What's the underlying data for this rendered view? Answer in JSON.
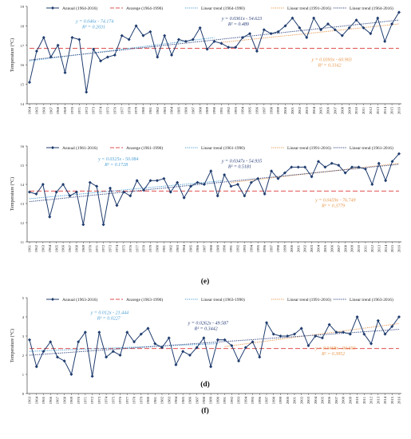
{
  "chart_data": [
    {
      "panel": "(d)",
      "type": "line",
      "ylabel": "Temperature (°C)",
      "ylim": [
        14,
        19
      ],
      "yticks": [
        14,
        15,
        16,
        17,
        18,
        19
      ],
      "x": [
        1964,
        1965,
        1966,
        1967,
        1968,
        1969,
        1970,
        1971,
        1972,
        1973,
        1974,
        1975,
        1976,
        1977,
        1978,
        1979,
        1980,
        1981,
        1982,
        1983,
        1984,
        1985,
        1986,
        1987,
        1988,
        1989,
        1990,
        1991,
        1992,
        1993,
        1994,
        1995,
        1996,
        1997,
        1998,
        1999,
        2000,
        2001,
        2002,
        2003,
        2004,
        2005,
        2006,
        2007,
        2008,
        2009,
        2010,
        2011,
        2012,
        2013,
        2014,
        2015,
        2016
      ],
      "legend": [
        "Annual (1964-2016)",
        "Avarege (1964-1990)",
        "Linear trend (1964-1990)",
        "Linear trend (1991-2016)",
        "Linear trend (1964-2016)"
      ],
      "colors": {
        "annual": "#1f3c6e",
        "average": "#e05050",
        "trend1": "#4a9fd4",
        "trend2": "#e8964a",
        "trend3": "#2a3f7a"
      },
      "values": [
        15.1,
        16.7,
        17.4,
        16.4,
        17.0,
        15.6,
        17.4,
        17.3,
        14.6,
        16.8,
        16.2,
        16.4,
        16.5,
        17.5,
        17.3,
        18.0,
        17.5,
        17.7,
        16.4,
        17.5,
        16.5,
        17.3,
        17.2,
        17.3,
        17.9,
        16.8,
        17.2,
        17.1,
        16.9,
        16.9,
        17.4,
        17.6,
        16.7,
        17.8,
        17.6,
        17.7,
        18.0,
        18.4,
        17.9,
        17.4,
        18.4,
        17.8,
        18.1,
        17.8,
        17.5,
        17.9,
        18.3,
        17.9,
        17.6,
        18.4,
        17.2,
        18.1,
        18.7
      ],
      "average": 16.85,
      "trend_full": {
        "x": [
          1964,
          2016
        ],
        "y": [
          16.25,
          18.3
        ]
      },
      "trend_early": {
        "x": [
          1964,
          1990
        ],
        "y": [
          16.2,
          17.4
        ]
      },
      "trend_late": {
        "x": [
          1991,
          2016
        ],
        "y": [
          17.15,
          18.1
        ]
      },
      "equations": [
        {
          "eq": "y = 0.046x - 74.174",
          "r2": "R² = 0.2031",
          "color": "#4a9fd4"
        },
        {
          "eq": "y = 0.0361x - 54.623",
          "r2": "R² = 0.489",
          "color": "#2a3f7a"
        },
        {
          "eq": "y = 0.0393x - 60.903",
          "r2": "R² = 0.3342",
          "color": "#e8964a"
        }
      ]
    },
    {
      "panel": "(e)",
      "type": "line",
      "ylabel": "Temperature (°C)",
      "ylim": [
        11,
        16
      ],
      "yticks": [
        11,
        12,
        13,
        14,
        15,
        16
      ],
      "x": [
        1961,
        1962,
        1963,
        1964,
        1965,
        1966,
        1967,
        1968,
        1969,
        1970,
        1971,
        1972,
        1973,
        1974,
        1975,
        1976,
        1977,
        1978,
        1979,
        1980,
        1981,
        1982,
        1983,
        1984,
        1985,
        1986,
        1987,
        1988,
        1989,
        1990,
        1991,
        1992,
        1993,
        1994,
        1995,
        1996,
        1997,
        1998,
        1999,
        2000,
        2001,
        2002,
        2003,
        2004,
        2005,
        2006,
        2007,
        2008,
        2009,
        2010,
        2011,
        2012,
        2013,
        2014,
        2015,
        2016
      ],
      "legend": [
        "Annual (1961-2016)",
        "Avarege (1961-1990)",
        "Linear trend (1961-1990)",
        "Linear trend (1991-2016)",
        "Linear trend (1961-2016)"
      ],
      "colors": {
        "annual": "#1f3c6e",
        "average": "#e05050",
        "trend1": "#4a9fd4",
        "trend2": "#e8964a",
        "trend3": "#2a3f7a"
      },
      "values": [
        13.6,
        13.5,
        14.0,
        12.3,
        13.6,
        14.0,
        13.4,
        13.6,
        11.9,
        14.1,
        13.9,
        11.9,
        13.8,
        12.9,
        13.6,
        13.4,
        14.2,
        13.7,
        14.2,
        14.2,
        14.3,
        13.6,
        14.1,
        13.3,
        13.9,
        14.1,
        14.0,
        14.7,
        13.4,
        14.5,
        13.9,
        14.0,
        13.4,
        14.1,
        14.3,
        13.5,
        14.7,
        14.3,
        14.6,
        14.9,
        14.9,
        14.9,
        14.4,
        15.2,
        14.9,
        15.1,
        15.0,
        14.6,
        14.9,
        14.9,
        14.8,
        14.0,
        15.1,
        14.2,
        15.2,
        15.6
      ],
      "average": 13.65,
      "trend_full": {
        "x": [
          1961,
          2016
        ],
        "y": [
          13.1,
          15.05
        ]
      },
      "trend_early": {
        "x": [
          1961,
          1990
        ],
        "y": [
          13.25,
          14.2
        ]
      },
      "trend_late": {
        "x": [
          1991,
          2016
        ],
        "y": [
          14.1,
          15.1
        ]
      },
      "equations": [
        {
          "eq": "y = 0.0325x - 50.084",
          "r2": "R² = 0.1728",
          "color": "#4a9fd4"
        },
        {
          "eq": "y = 0.0347x - 54.935",
          "r2": "R² = 0.5181",
          "color": "#2a3f7a"
        },
        {
          "eq": "y = 0.0459x - 76.749",
          "r2": "R² = 0.3779",
          "color": "#e8964a"
        }
      ]
    },
    {
      "panel": "(f)",
      "type": "line",
      "ylabel": "Temperature (°C)",
      "ylim": [
        0,
        5
      ],
      "yticks": [
        0,
        1,
        2,
        3,
        4,
        5
      ],
      "x": [
        1963,
        1964,
        1965,
        1966,
        1967,
        1968,
        1969,
        1970,
        1971,
        1972,
        1973,
        1974,
        1975,
        1976,
        1977,
        1978,
        1979,
        1980,
        1981,
        1982,
        1983,
        1984,
        1985,
        1986,
        1987,
        1988,
        1989,
        1990,
        1991,
        1992,
        1993,
        1994,
        1995,
        1996,
        1997,
        1998,
        1999,
        2000,
        2001,
        2002,
        2003,
        2004,
        2005,
        2006,
        2007,
        2008,
        2009,
        2010,
        2011,
        2012,
        2013,
        2014,
        2015,
        2016
      ],
      "legend": [
        "Annual (1963-2016)",
        "Avarege (1963-1990)",
        "Linear trend (1963-1990)",
        "Linear trend (1991-2016)",
        "Linear trend (1963-2016)"
      ],
      "colors": {
        "annual": "#1f3c6e",
        "average": "#e05050",
        "trend1": "#4a9fd4",
        "trend2": "#e8964a",
        "trend3": "#2a3f7a"
      },
      "values": [
        2.8,
        1.4,
        2.2,
        2.7,
        1.9,
        1.7,
        1.0,
        2.7,
        3.2,
        0.9,
        3.2,
        1.9,
        2.2,
        2.0,
        3.2,
        2.7,
        3.1,
        3.4,
        2.6,
        2.4,
        2.9,
        1.5,
        2.2,
        2.0,
        2.4,
        2.9,
        1.4,
        2.8,
        2.8,
        2.5,
        1.7,
        2.4,
        2.7,
        1.9,
        3.7,
        3.1,
        3.0,
        3.0,
        3.1,
        3.4,
        2.5,
        3.0,
        2.9,
        3.6,
        3.2,
        3.2,
        3.1,
        4.0,
        3.1,
        2.6,
        3.8,
        3.1,
        3.5,
        4.0
      ],
      "average": 2.35,
      "trend_full": {
        "x": [
          1963,
          2016
        ],
        "y": [
          2.0,
          3.35
        ]
      },
      "trend_early": {
        "x": [
          1963,
          1990
        ],
        "y": [
          2.2,
          2.6
        ]
      },
      "trend_late": {
        "x": [
          1991,
          2016
        ],
        "y": [
          2.45,
          3.65
        ]
      },
      "equations": [
        {
          "eq": "y = 0.012x - 21.444",
          "r2": "R² = 0.0227",
          "color": "#4a9fd4"
        },
        {
          "eq": "y = 0.0262x - 49.587",
          "r2": "R² = 0.3442",
          "color": "#2a3f7a"
        },
        {
          "eq": "y = 0.0468x - 90.693",
          "r2": "R² = 0.3952",
          "color": "#e8964a"
        }
      ]
    }
  ]
}
